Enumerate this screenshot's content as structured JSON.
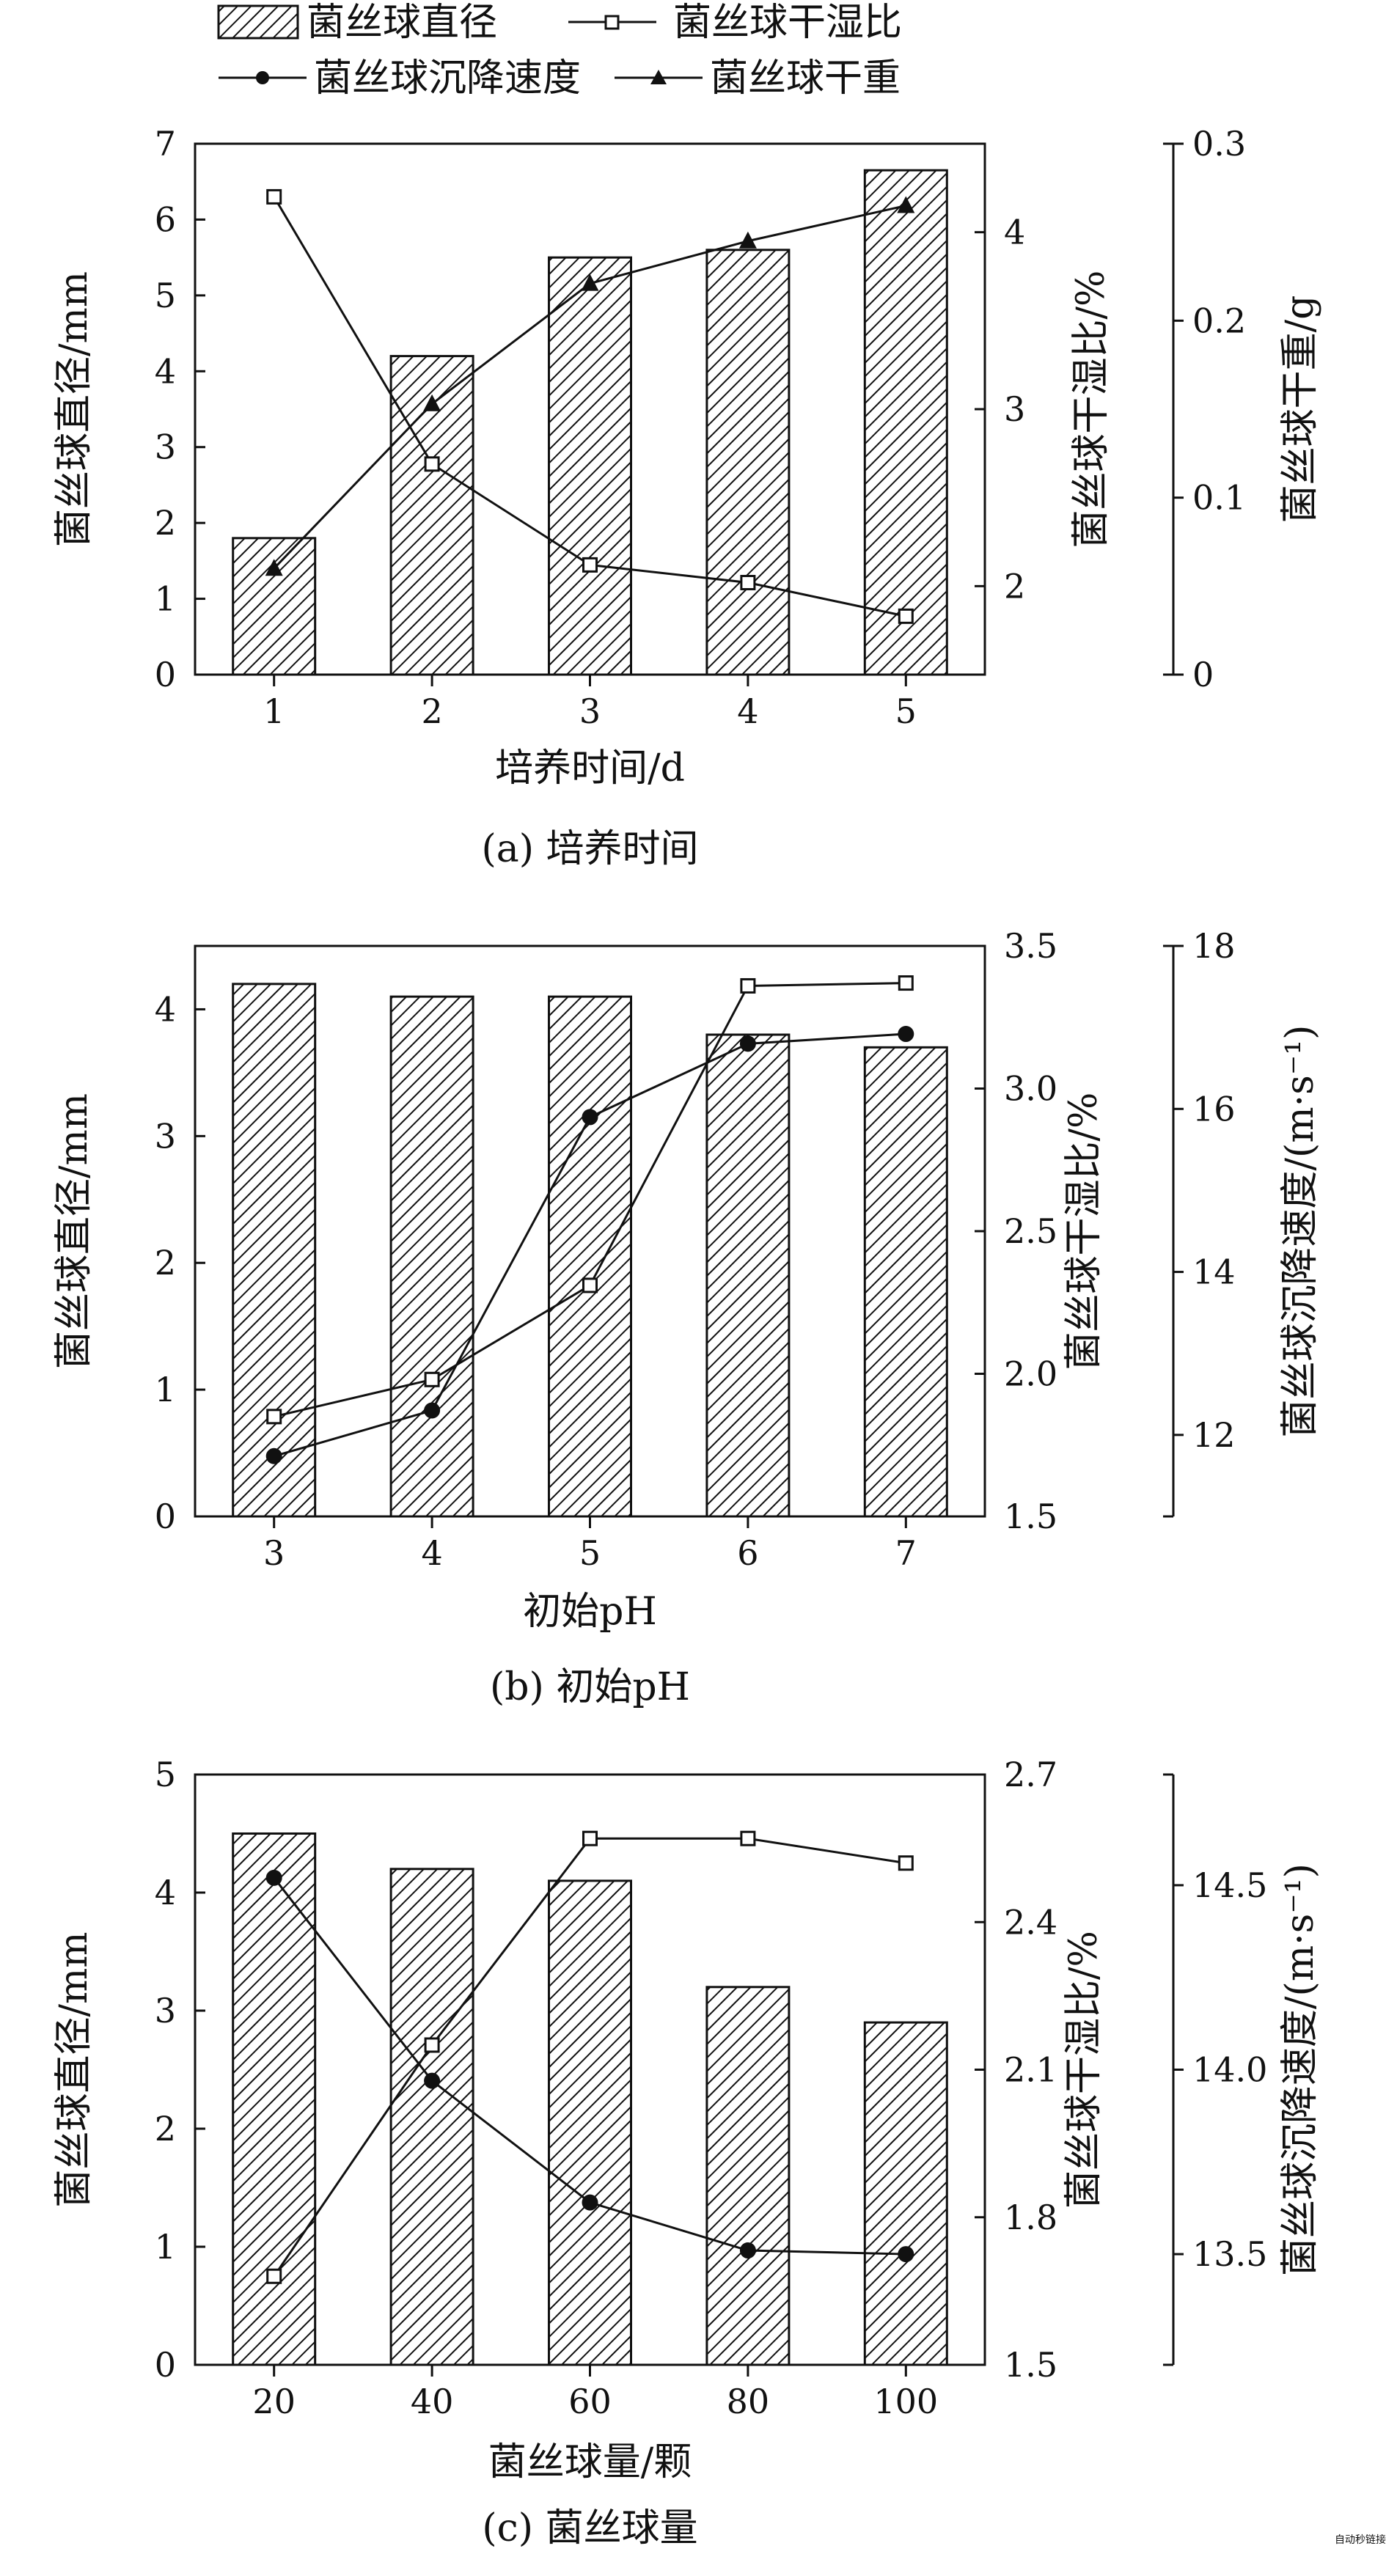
{
  "legend": {
    "bar": "菌丝球直径",
    "ratio": "菌丝球干湿比",
    "velocity": "菌丝球沉降速度",
    "weight": "菌丝球干重"
  },
  "watermark": "自动秒链接",
  "chart_data": [
    {
      "type": "bar",
      "caption": "(a) 培养时间",
      "xlabel": "培养时间/d",
      "categories": [
        "1",
        "2",
        "3",
        "4",
        "5"
      ],
      "left_axis": {
        "label": "菌丝球直径/mm",
        "ylim": [
          0,
          7
        ],
        "ticks": [
          0,
          1,
          2,
          3,
          4,
          5,
          6,
          7
        ]
      },
      "right_axes": [
        {
          "label": "菌丝球干湿比/%",
          "ylim": [
            1.5,
            4.5
          ],
          "ticks": [
            2,
            3,
            4
          ]
        },
        {
          "label": "菌丝球干重/g",
          "ylim": [
            0,
            0.3
          ],
          "ticks": [
            "0",
            "0.1",
            "0.2",
            "0.3"
          ]
        }
      ],
      "series": [
        {
          "name": "菌丝球直径",
          "kind": "bar",
          "axis": 0,
          "values": [
            1.8,
            4.2,
            5.5,
            5.6,
            6.65
          ]
        },
        {
          "name": "菌丝球干湿比",
          "kind": "line",
          "marker": "open-square",
          "axis": 1,
          "values": [
            4.2,
            2.69,
            2.12,
            2.02,
            1.83
          ]
        },
        {
          "name": "菌丝球干重",
          "kind": "line",
          "marker": "filled-triangle",
          "axis": 2,
          "values": [
            0.06,
            0.153,
            0.221,
            0.245,
            0.265
          ]
        }
      ]
    },
    {
      "type": "bar",
      "caption": "(b) 初始pH",
      "xlabel": "初始pH",
      "categories": [
        "3",
        "4",
        "5",
        "6",
        "7"
      ],
      "left_axis": {
        "label": "菌丝球直径/mm",
        "ylim": [
          0,
          4.5
        ],
        "ticks": [
          0,
          1,
          2,
          3,
          4
        ]
      },
      "right_axes": [
        {
          "label": "菌丝球干湿比/%",
          "ylim": [
            1.5,
            3.5
          ],
          "ticks": [
            "1.5",
            "2.0",
            "2.5",
            "3.0",
            "3.5"
          ]
        },
        {
          "label": "菌丝球沉降速度/(m·s⁻¹)",
          "ylim": [
            11,
            18
          ],
          "ticks": [
            12,
            14,
            16,
            18
          ]
        }
      ],
      "series": [
        {
          "name": "菌丝球直径",
          "kind": "bar",
          "axis": 0,
          "values": [
            4.2,
            4.1,
            4.1,
            3.8,
            3.7
          ]
        },
        {
          "name": "菌丝球干湿比",
          "kind": "line",
          "marker": "open-square",
          "axis": 1,
          "values": [
            1.85,
            1.98,
            2.31,
            3.36,
            3.37
          ]
        },
        {
          "name": "菌丝球沉降速度",
          "kind": "line",
          "marker": "filled-circle",
          "axis": 2,
          "values": [
            11.74,
            12.3,
            15.9,
            16.8,
            16.92
          ]
        }
      ]
    },
    {
      "type": "bar",
      "caption": "(c) 菌丝球量",
      "xlabel": "菌丝球量/颗",
      "categories": [
        "20",
        "40",
        "60",
        "80",
        "100"
      ],
      "left_axis": {
        "label": "菌丝球直径/mm",
        "ylim": [
          0,
          5
        ],
        "ticks": [
          0,
          1,
          2,
          3,
          4,
          5
        ]
      },
      "right_axes": [
        {
          "label": "菌丝球干湿比/%",
          "ylim": [
            1.5,
            2.7
          ],
          "ticks": [
            "1.5",
            "1.8",
            "2.1",
            "2.4",
            "2.7"
          ]
        },
        {
          "label": "菌丝球沉降速度/(m·s⁻¹)",
          "ylim": [
            13.2,
            14.8
          ],
          "ticks": [
            "13.5",
            "14.0",
            "14.5"
          ]
        }
      ],
      "series": [
        {
          "name": "菌丝球直径",
          "kind": "bar",
          "axis": 0,
          "values": [
            4.5,
            4.2,
            4.1,
            3.2,
            2.9
          ]
        },
        {
          "name": "菌丝球干湿比",
          "kind": "line",
          "marker": "open-square",
          "axis": 1,
          "values": [
            1.68,
            2.15,
            2.57,
            2.57,
            2.52
          ]
        },
        {
          "name": "菌丝球沉降速度",
          "kind": "line",
          "marker": "filled-circle",
          "axis": 2,
          "values": [
            14.52,
            13.97,
            13.64,
            13.51,
            13.5
          ]
        }
      ]
    }
  ]
}
